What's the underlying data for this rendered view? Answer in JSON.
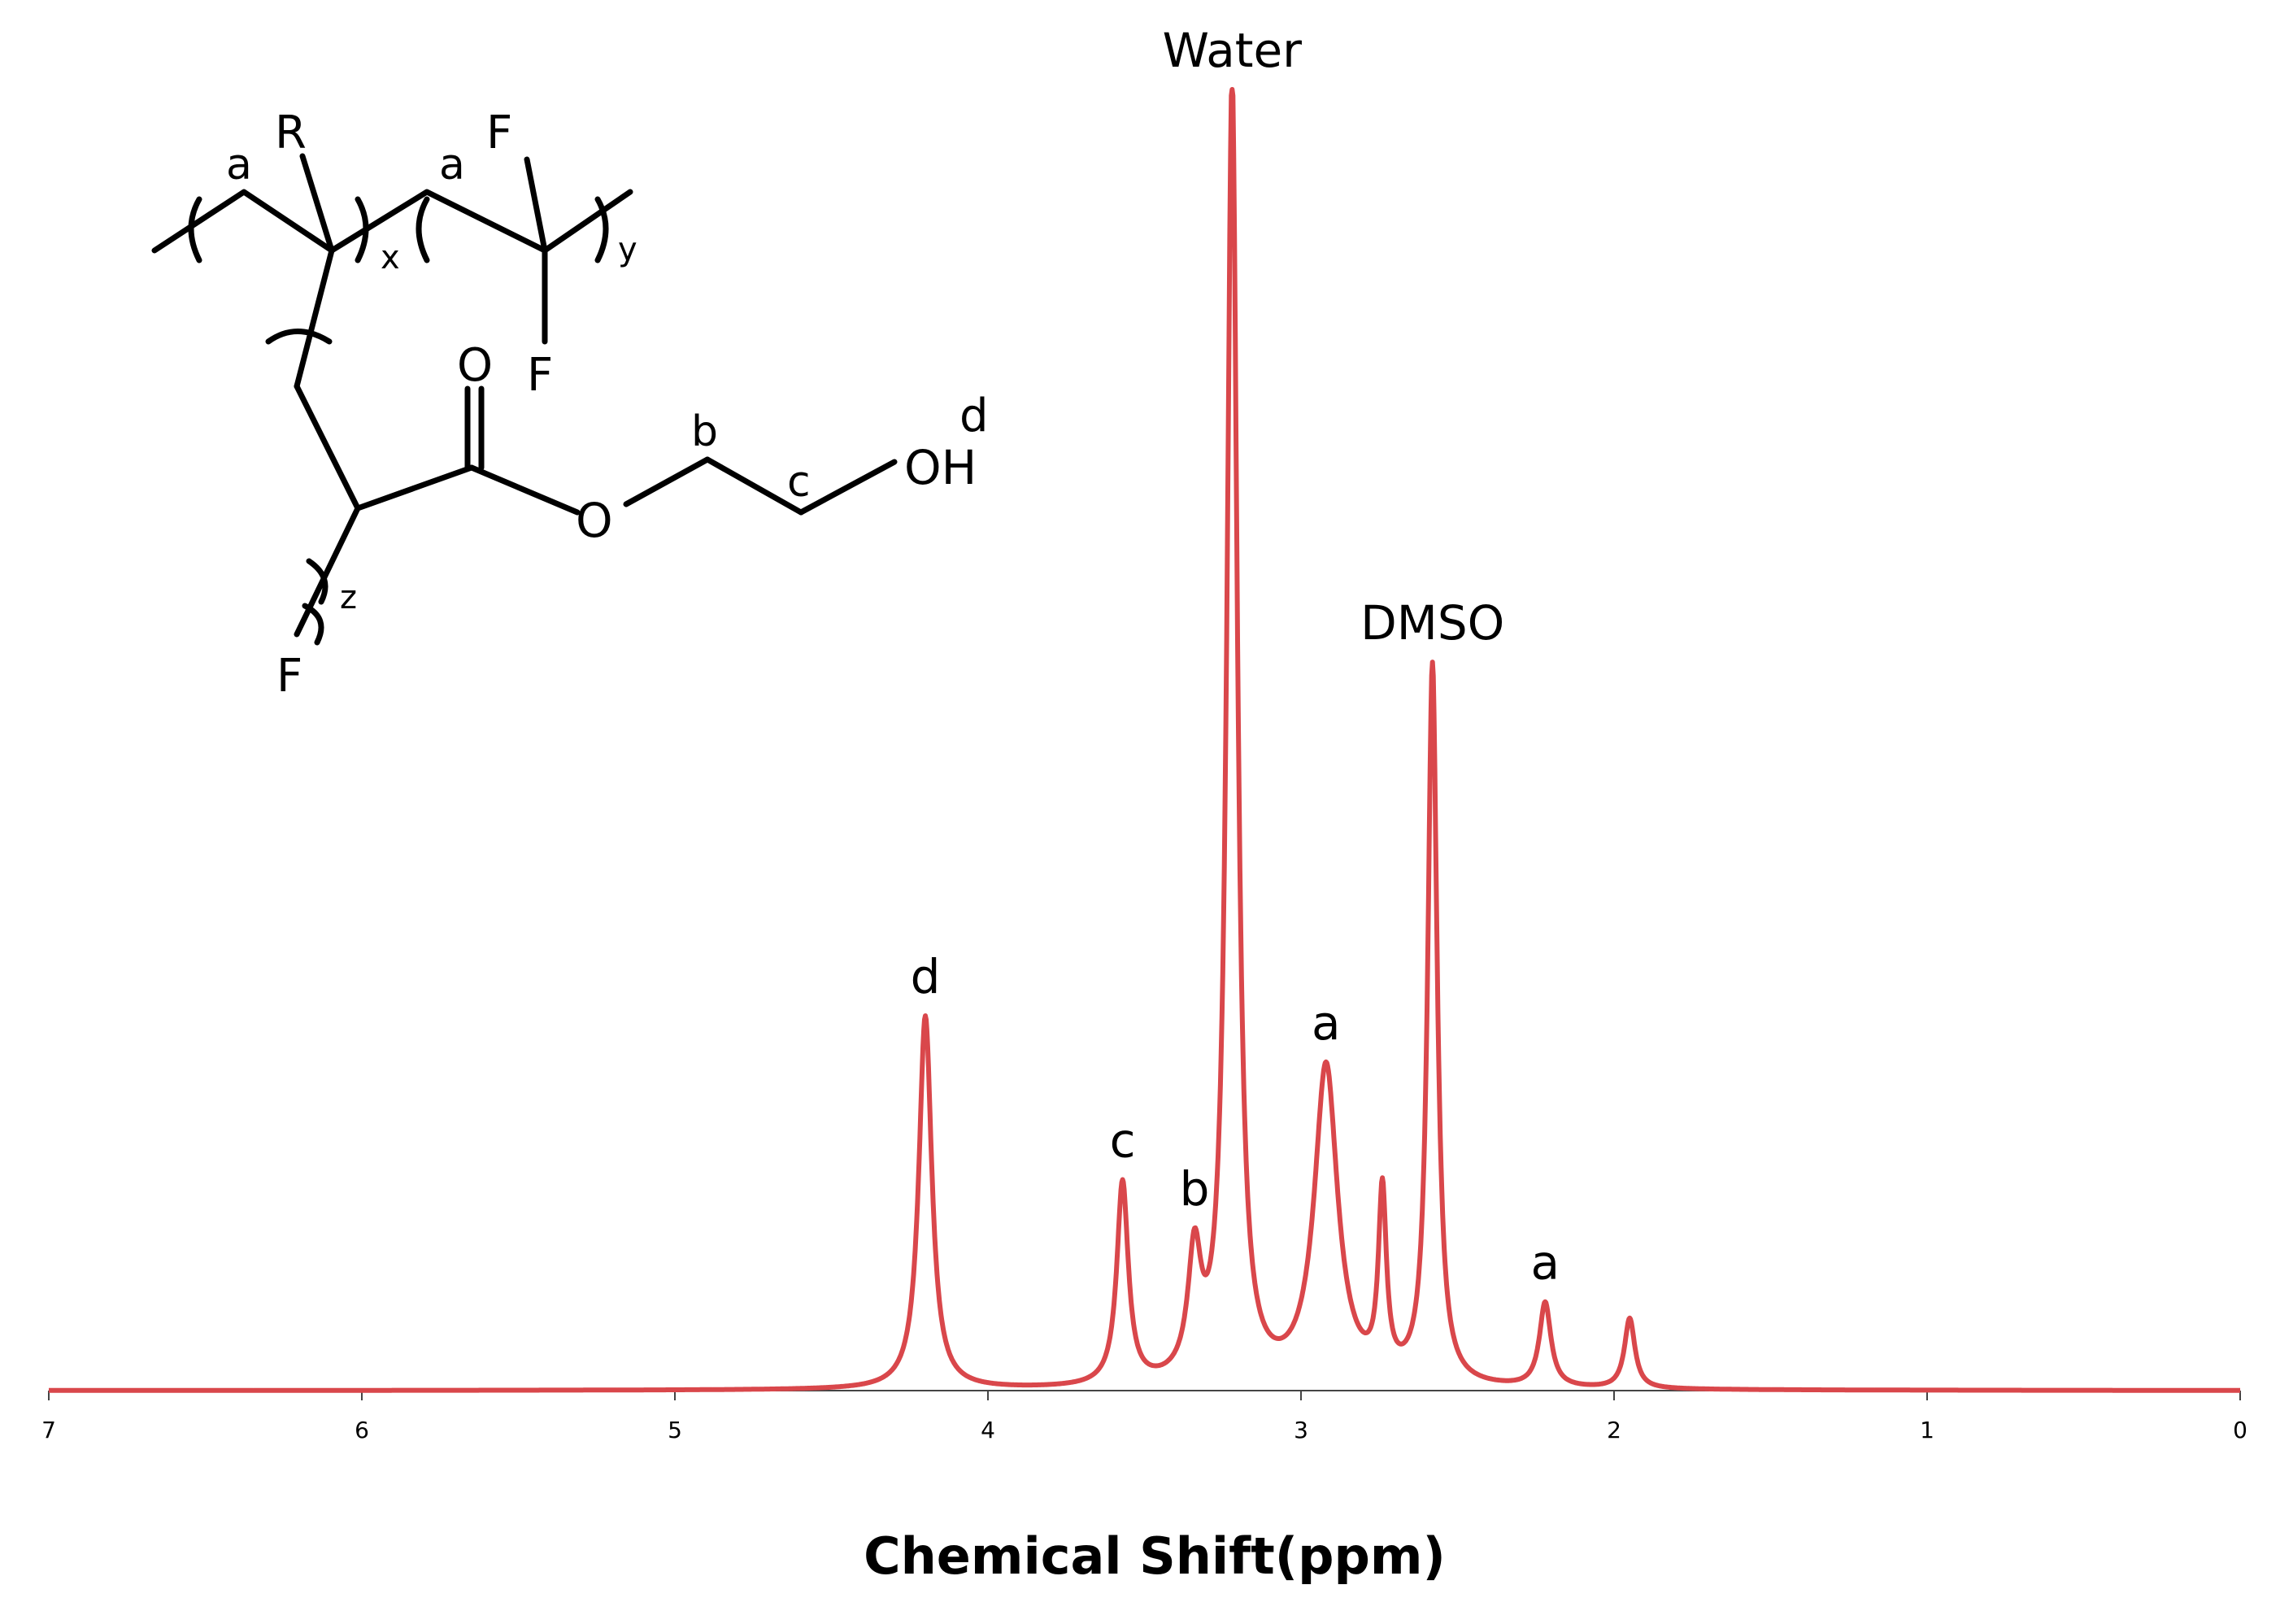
{
  "chart_data": {
    "type": "line",
    "xlabel": "Chemical Shift(ppm)",
    "ylabel": "",
    "title": "",
    "x_reversed": true,
    "xlim": [
      7,
      0
    ],
    "ylim": [
      0,
      1
    ],
    "xticks": [
      7,
      6,
      5,
      4,
      3,
      2,
      1,
      0
    ],
    "grid": false,
    "line_color": "#d9474b",
    "series": [
      {
        "peaks": [
          {
            "ppm": 4.2,
            "height": 0.287,
            "width": 0.025,
            "label": "d"
          },
          {
            "ppm": 3.57,
            "height": 0.156,
            "width": 0.022,
            "label": "c"
          },
          {
            "ppm": 3.34,
            "height": 0.093,
            "width": 0.025,
            "label": "b"
          },
          {
            "ppm": 3.22,
            "height": 1.0,
            "width": 0.02,
            "label": "Water"
          },
          {
            "ppm": 2.92,
            "height": 0.245,
            "width": 0.045,
            "label": "a"
          },
          {
            "ppm": 2.74,
            "height": 0.14,
            "width": 0.015,
            "label": ""
          },
          {
            "ppm": 2.58,
            "height": 0.553,
            "width": 0.018,
            "label": "DMSO"
          },
          {
            "ppm": 2.22,
            "height": 0.065,
            "width": 0.022,
            "label": "a"
          },
          {
            "ppm": 1.95,
            "height": 0.054,
            "width": 0.02,
            "label": ""
          }
        ]
      }
    ]
  },
  "structure": {
    "labels": {
      "a1": "a",
      "R": "R",
      "x": "x",
      "a2": "a",
      "F_top": "F",
      "y": "y",
      "F_mid": "F",
      "O_carbonyl": "O",
      "b": "b",
      "d": "d",
      "c": "c",
      "OH": "OH",
      "O_ester": "O",
      "z": "z",
      "F_bottom": "F"
    }
  }
}
